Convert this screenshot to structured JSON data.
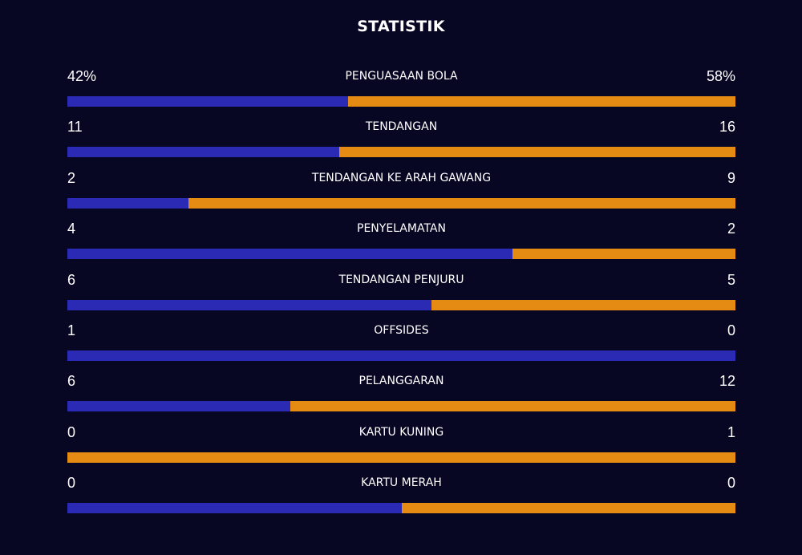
{
  "title": "STATISTIK",
  "colors": {
    "background": "#070723",
    "home": "#2a2ab4",
    "away": "#e58a12",
    "text": "#ffffff"
  },
  "chart_data": {
    "type": "bar",
    "title": "STATISTIK",
    "categories": [
      "PENGUASAAN BOLA",
      "TENDANGAN",
      "TENDANGAN KE ARAH GAWANG",
      "PENYELAMATAN",
      "TENDANGAN PENJURU",
      "OFFSIDES",
      "PELANGGARAN",
      "KARTU KUNING",
      "KARTU MERAH"
    ],
    "rows": [
      {
        "label": "PENGUASAAN BOLA",
        "home_text": "42%",
        "away_text": "58%",
        "home": 42,
        "away": 58
      },
      {
        "label": "TENDANGAN",
        "home_text": "11",
        "away_text": "16",
        "home": 11,
        "away": 16
      },
      {
        "label": "TENDANGAN KE ARAH GAWANG",
        "home_text": "2",
        "away_text": "9",
        "home": 2,
        "away": 9
      },
      {
        "label": "PENYELAMATAN",
        "home_text": "4",
        "away_text": "2",
        "home": 4,
        "away": 2
      },
      {
        "label": "TENDANGAN PENJURU",
        "home_text": "6",
        "away_text": "5",
        "home": 6,
        "away": 5
      },
      {
        "label": "OFFSIDES",
        "home_text": "1",
        "away_text": "0",
        "home": 1,
        "away": 0
      },
      {
        "label": "PELANGGARAN",
        "home_text": "6",
        "away_text": "12",
        "home": 6,
        "away": 12
      },
      {
        "label": "KARTU KUNING",
        "home_text": "0",
        "away_text": "1",
        "home": 0,
        "away": 1
      },
      {
        "label": "KARTU MERAH",
        "home_text": "0",
        "away_text": "0",
        "home": 0,
        "away": 0
      }
    ]
  }
}
